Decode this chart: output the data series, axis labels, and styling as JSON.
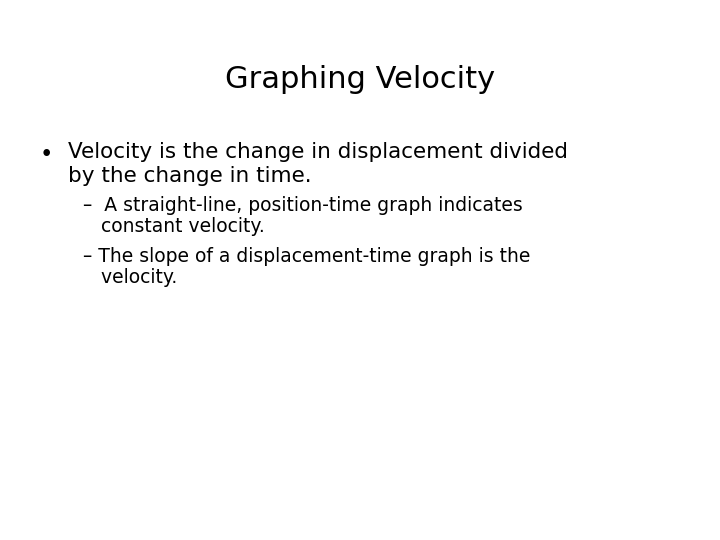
{
  "title": "Graphing Velocity",
  "background_color": "#ffffff",
  "text_color": "#000000",
  "title_fontsize": 22,
  "bullet_fontsize": 15.5,
  "sub_bullet_fontsize": 13.5,
  "title_font": "DejaVu Sans",
  "body_font": "DejaVu Sans",
  "bullet_text_line1": "Velocity is the change in displacement divided",
  "bullet_text_line2": "by the change in time.",
  "sub1_line1": "–  A straight-line, position-time graph indicates",
  "sub1_line2": "   constant velocity.",
  "sub2_line1": "– The slope of a displacement-time graph is the",
  "sub2_line2": "   velocity."
}
